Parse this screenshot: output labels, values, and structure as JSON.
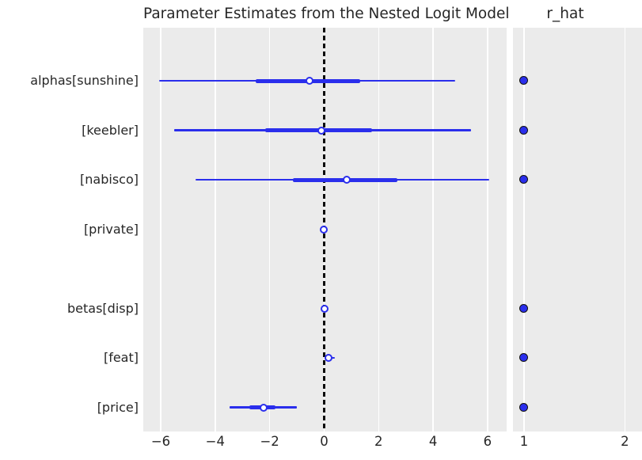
{
  "colors": {
    "line_blue": "#2a2eec",
    "dot_fill": "#2a2eec",
    "dot_edge": "#111111",
    "panel_bg": "#ebebeb",
    "grid": "#ffffff",
    "zero_line": "#0b0b0b",
    "text": "#262626"
  },
  "chart_data": {
    "type": "forest",
    "title": "Parameter Estimates from the Nested Logit Model",
    "rhat_title": "r_hat",
    "legend_position": "none",
    "grid": true,
    "rows": [
      {
        "label": "alphas[sunshine]",
        "whisker": [
          -6.06,
          4.81
        ],
        "thick": [
          -2.51,
          1.33
        ],
        "median": -0.53,
        "r_hat": 1.0
      },
      {
        "label": "[keebler]",
        "whisker": [
          -5.51,
          5.4
        ],
        "thick": [
          -2.16,
          1.76
        ],
        "median": -0.1,
        "r_hat": 1.0
      },
      {
        "label": "[nabisco]",
        "whisker": [
          -4.72,
          6.06
        ],
        "thick": [
          -1.15,
          2.69
        ],
        "median": 0.83,
        "r_hat": 1.0
      },
      {
        "label": "[private]",
        "whisker": [
          -0.08,
          0.07
        ],
        "thick": [
          -0.03,
          0.03
        ],
        "median": 0.0,
        "r_hat": null
      },
      {
        "label": "betas[disp]",
        "whisker": [
          -0.06,
          0.08
        ],
        "thick": [
          -0.02,
          0.03
        ],
        "median": 0.01,
        "r_hat": 1.0
      },
      {
        "label": "[feat]",
        "whisker": [
          0.06,
          0.4
        ],
        "thick": [
          0.12,
          0.25
        ],
        "median": 0.16,
        "r_hat": 1.0
      },
      {
        "label": "[price]",
        "whisker": [
          -3.47,
          -1.0
        ],
        "thick": [
          -2.75,
          -1.79
        ],
        "median": -2.22,
        "r_hat": 1.0
      }
    ],
    "left_axis": {
      "xlim": [
        -6.64,
        6.7
      ],
      "ticks": [
        -6,
        -4,
        -2,
        0,
        2,
        4,
        6
      ],
      "tick_labels": [
        "−6",
        "−4",
        "−2",
        "0",
        "2",
        "4",
        "6"
      ],
      "reference_line": 0
    },
    "right_axis": {
      "xlim": [
        0.89,
        2.17
      ],
      "ticks": [
        1,
        2
      ],
      "tick_labels": [
        "1",
        "2"
      ]
    },
    "row_slots": [
      0,
      1,
      2,
      3,
      4.6,
      5.6,
      6.6
    ],
    "slot_height": 62.5,
    "first_row_offset": 67
  }
}
